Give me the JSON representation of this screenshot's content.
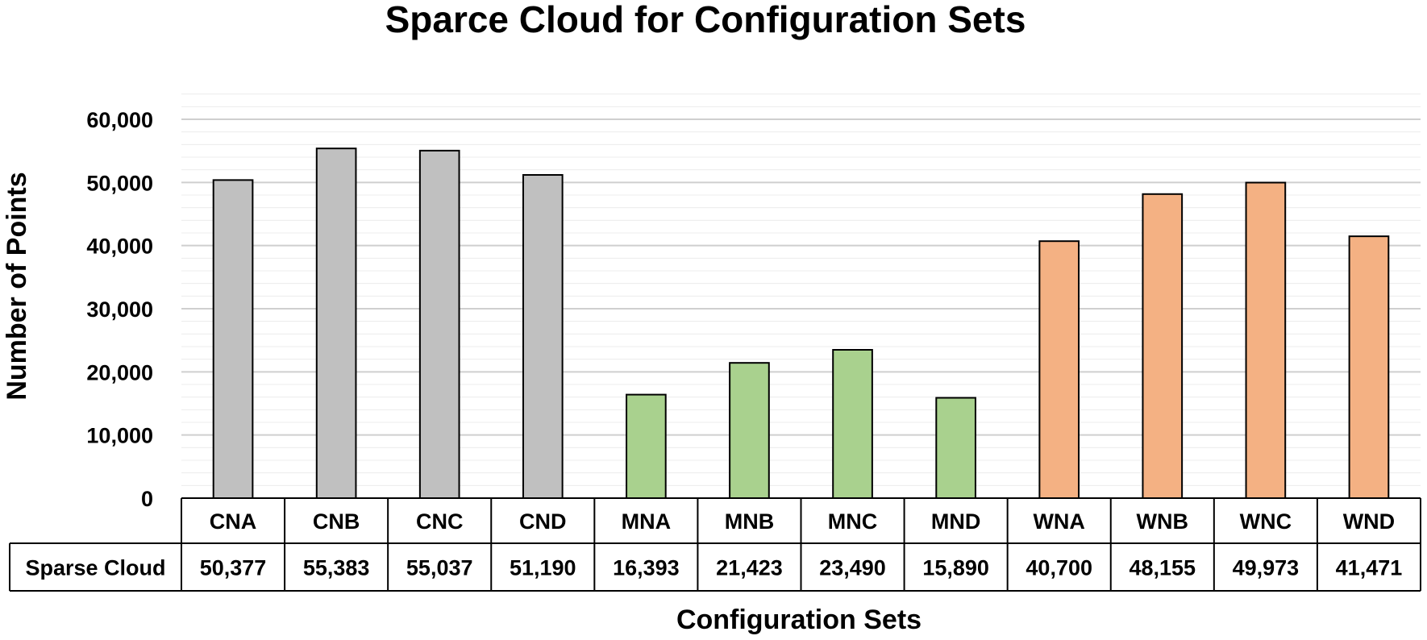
{
  "chart_data": {
    "type": "bar",
    "title": "Sparce Cloud for Configuration Sets",
    "xlabel": "Configuration Sets",
    "ylabel": "Number of Points",
    "ylim": [
      0,
      60000
    ],
    "yticks": [
      0,
      10000,
      20000,
      30000,
      40000,
      50000,
      60000
    ],
    "ytick_labels": [
      "0",
      "10,000",
      "20,000",
      "30,000",
      "40,000",
      "50,000",
      "60,000"
    ],
    "grid": true,
    "categories": [
      "CNA",
      "CNB",
      "CNC",
      "CND",
      "MNA",
      "MNB",
      "MNC",
      "MND",
      "WNA",
      "WNB",
      "WNC",
      "WND"
    ],
    "series": [
      {
        "name": "Sparse Cloud",
        "values": [
          50377,
          55383,
          55037,
          51190,
          16393,
          21423,
          23490,
          15890,
          40700,
          48155,
          49973,
          41471
        ],
        "value_labels": [
          "50,377",
          "55,383",
          "55,037",
          "51,190",
          "16,393",
          "21,423",
          "23,490",
          "15,890",
          "40,700",
          "48,155",
          "49,973",
          "41,471"
        ]
      }
    ],
    "bar_colors": [
      "#c0c0c0",
      "#c0c0c0",
      "#c0c0c0",
      "#c0c0c0",
      "#a9d18e",
      "#a9d18e",
      "#a9d18e",
      "#a9d18e",
      "#f4b183",
      "#f4b183",
      "#f4b183",
      "#f4b183"
    ],
    "data_table": true
  }
}
